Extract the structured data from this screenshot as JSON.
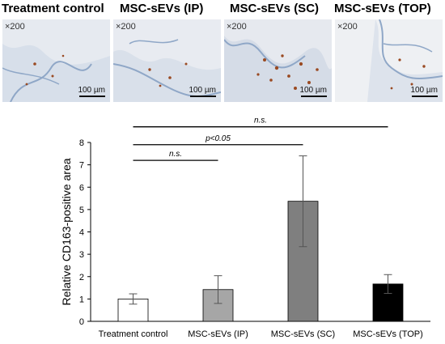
{
  "panels": [
    {
      "label": "Treatment control",
      "magnification": "×200",
      "scale": "100 µm"
    },
    {
      "label": "MSC-sEVs (IP)",
      "magnification": "×200",
      "scale": "100 µm"
    },
    {
      "label": "MSC-sEVs (SC)",
      "magnification": "×200",
      "scale": "100 µm"
    },
    {
      "label": "MSC-sEVs (TOP)",
      "magnification": "×200",
      "scale": "100 µm"
    }
  ],
  "colors": {
    "tissue_bg": "#e9edf3",
    "tissue_stain": "#8fa7c7",
    "positive_stain": "#9a4a22"
  },
  "chart_data": {
    "type": "bar",
    "ylabel": "Relative CD163-positive area",
    "xlabel": "",
    "ylim": [
      0,
      8
    ],
    "yticks": [
      0,
      1,
      2,
      3,
      4,
      5,
      6,
      7,
      8
    ],
    "categories": [
      "Treatment control",
      "MSC-sEVs (IP)",
      "MSC-sEVs (SC)",
      "MSC-sEVs (TOP)"
    ],
    "values": [
      1.0,
      1.42,
      5.37,
      1.67
    ],
    "errors": [
      0.23,
      0.62,
      2.03,
      0.42
    ],
    "bar_colors": [
      "#ffffff",
      "#a6a6a6",
      "#7f7f7f",
      "#000000"
    ],
    "grid": false,
    "significance": [
      {
        "from": 0,
        "to": 1,
        "label": "n.s.",
        "level": 7.2
      },
      {
        "from": 0,
        "to": 2,
        "label": "p<0.05",
        "level": 7.9
      },
      {
        "from": 0,
        "to": 3,
        "label": "n.s.",
        "level": 8.7
      }
    ]
  }
}
